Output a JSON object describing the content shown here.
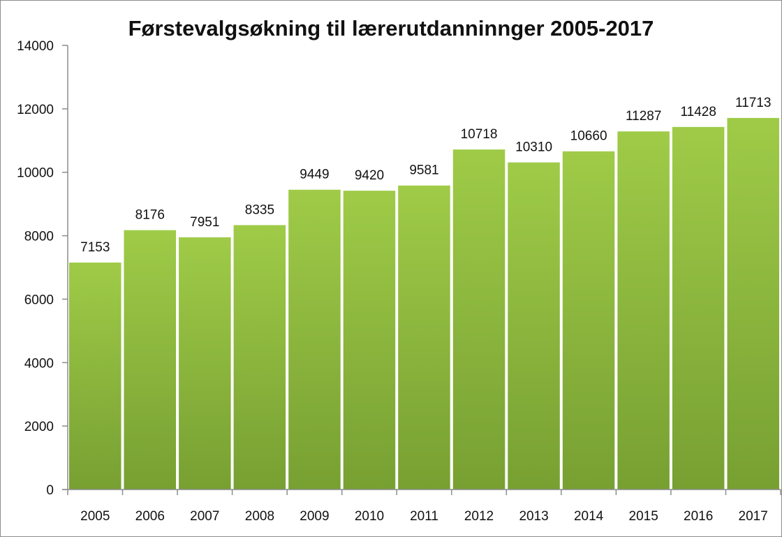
{
  "chart_data": {
    "type": "bar",
    "title": "Førstevalgsøkning til lærerutdanninnger 2005-2017",
    "xlabel": "",
    "ylabel": "",
    "categories": [
      "2005",
      "2006",
      "2007",
      "2008",
      "2009",
      "2010",
      "2011",
      "2012",
      "2013",
      "2014",
      "2015",
      "2016",
      "2017"
    ],
    "values": [
      7153,
      8176,
      7951,
      8335,
      9449,
      9420,
      9581,
      10718,
      10310,
      10660,
      11287,
      11428,
      11713
    ],
    "ylim": [
      0,
      14000
    ],
    "yticks": [
      0,
      2000,
      4000,
      6000,
      8000,
      10000,
      12000,
      14000
    ],
    "grid": false,
    "legend": "none",
    "data_labels": true,
    "colors": {
      "bar_top": "#9fcb48",
      "bar_bottom": "#77a032",
      "axis": "#8c8c8c",
      "text": "#111111"
    }
  }
}
